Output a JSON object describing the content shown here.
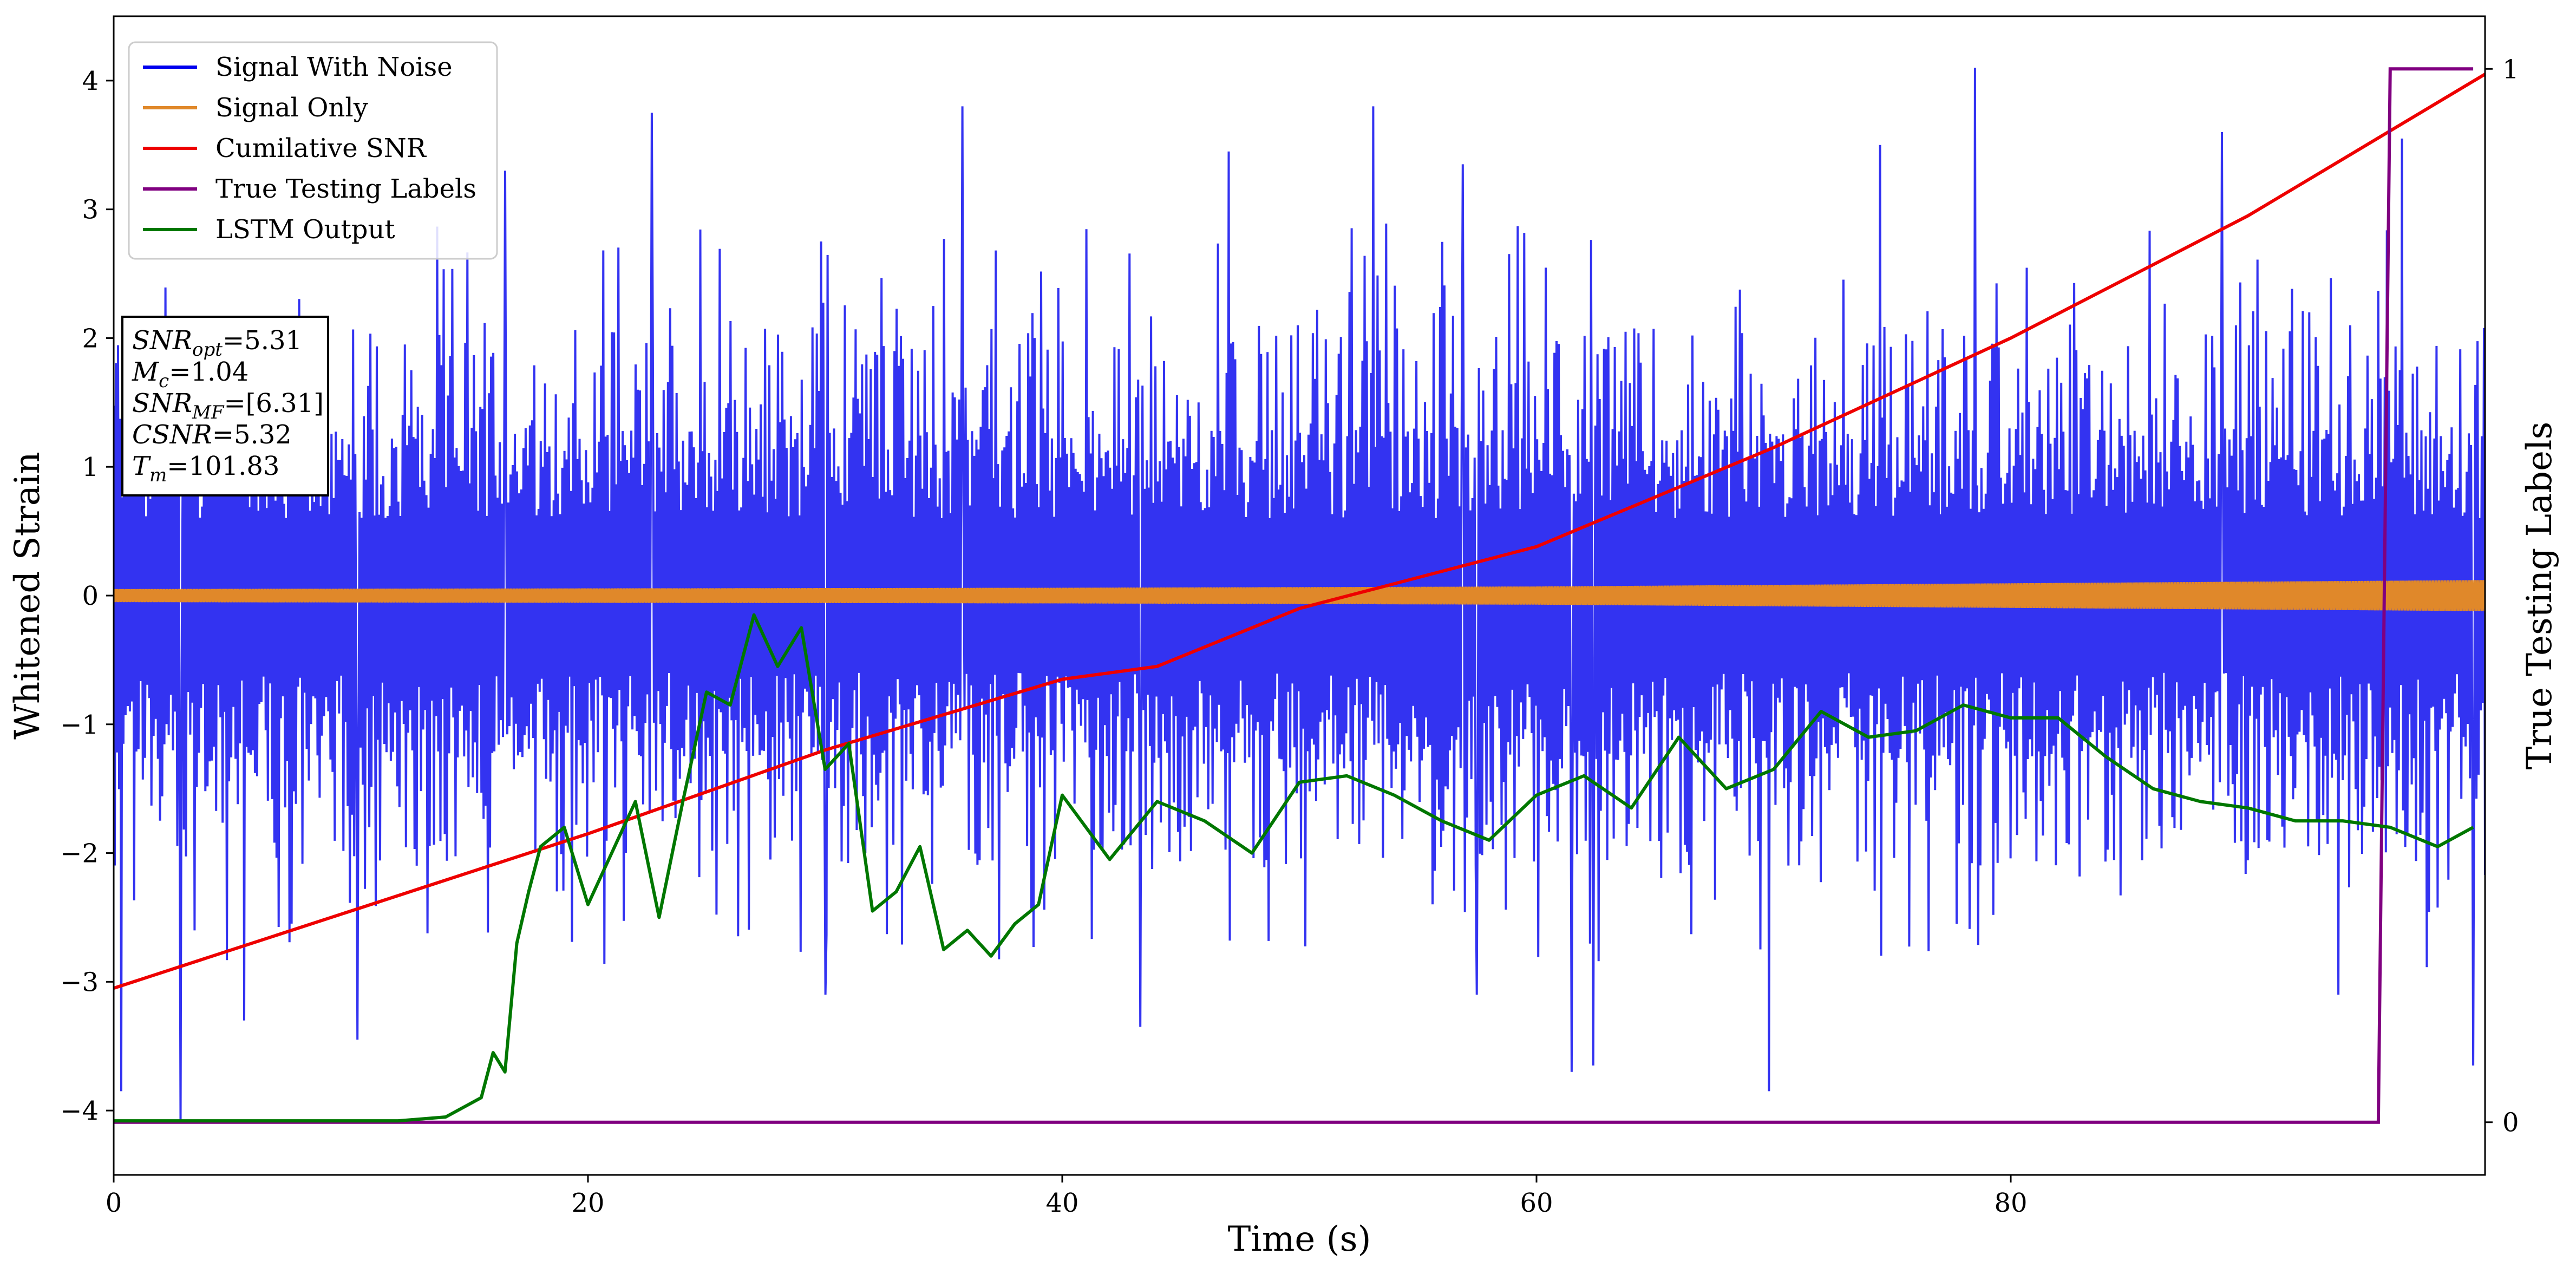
{
  "chart_data": {
    "type": "line",
    "xlabel": "Time (s)",
    "ylabel": "Whitened Strain",
    "y2label": "True Testing Labels",
    "xlim": [
      0,
      100
    ],
    "ylim": [
      -4.5,
      4.5
    ],
    "y2lim": [
      -0.05,
      1.05
    ],
    "xticks": [
      0,
      20,
      40,
      60,
      80
    ],
    "yticks": [
      -4,
      -3,
      -2,
      -1,
      0,
      1,
      2,
      3,
      4
    ],
    "y2ticks": [
      0,
      1
    ],
    "grid": false,
    "legend_position": "top-left",
    "series": [
      {
        "name": "Signal With Noise",
        "axis": "left",
        "color": "#0000ee",
        "noise_band": [
          -1.7,
          2.3
        ],
        "peaks": [
          {
            "x": 0.3,
            "y": -3.85
          },
          {
            "x": 2.8,
            "y": -4.08
          },
          {
            "x": 5.5,
            "y": -3.3
          },
          {
            "x": 10.3,
            "y": -3.45
          },
          {
            "x": 16.5,
            "y": 3.3
          },
          {
            "x": 22.7,
            "y": 3.75
          },
          {
            "x": 30.0,
            "y": -3.1
          },
          {
            "x": 35.8,
            "y": 3.8
          },
          {
            "x": 43.3,
            "y": -3.35
          },
          {
            "x": 47.0,
            "y": 3.45
          },
          {
            "x": 53.1,
            "y": 3.8
          },
          {
            "x": 56.9,
            "y": 3.35
          },
          {
            "x": 57.5,
            "y": -3.1
          },
          {
            "x": 61.5,
            "y": -3.7
          },
          {
            "x": 62.4,
            "y": -3.65
          },
          {
            "x": 69.8,
            "y": -3.85
          },
          {
            "x": 74.5,
            "y": 3.5
          },
          {
            "x": 78.5,
            "y": 4.1
          },
          {
            "x": 88.9,
            "y": 3.6
          },
          {
            "x": 93.8,
            "y": -3.1
          },
          {
            "x": 96.5,
            "y": 3.55
          },
          {
            "x": 99.5,
            "y": -3.65
          }
        ]
      },
      {
        "name": "Signal Only",
        "axis": "left",
        "color": "#e0882a",
        "amplitude": [
          [
            0,
            0.05
          ],
          [
            40,
            0.06
          ],
          [
            60,
            0.07
          ],
          [
            100,
            0.12
          ]
        ]
      },
      {
        "name": "Cumilative SNR",
        "axis": "left",
        "color": "#ee0000",
        "x": [
          0,
          10,
          20,
          30,
          40,
          44,
          50,
          60,
          70,
          80,
          90,
          100
        ],
        "y": [
          -3.05,
          -2.45,
          -1.85,
          -1.2,
          -0.65,
          -0.55,
          -0.1,
          0.38,
          1.15,
          2.0,
          2.95,
          4.05
        ]
      },
      {
        "name": "True Testing Labels",
        "axis": "right",
        "color": "#800080",
        "x": [
          0,
          95.5,
          96.0,
          99.5
        ],
        "y": [
          0,
          0,
          1,
          1
        ]
      },
      {
        "name": "LSTM Output",
        "axis": "left",
        "color": "#007700",
        "x": [
          0,
          12,
          14,
          15.5,
          16,
          16.5,
          17,
          17.5,
          18,
          19,
          20,
          21,
          22,
          23,
          24,
          25,
          26,
          27,
          28,
          29,
          30,
          31,
          32,
          33,
          34,
          35,
          36,
          37,
          38,
          39,
          40,
          42,
          44,
          46,
          48,
          50,
          52,
          54,
          56,
          58,
          60,
          62,
          64,
          66,
          68,
          70,
          72,
          74,
          76,
          78,
          80,
          82,
          84,
          86,
          88,
          90,
          92,
          94,
          96,
          98,
          99.5
        ],
        "y": [
          -4.08,
          -4.08,
          -4.05,
          -3.9,
          -3.55,
          -3.7,
          -2.7,
          -2.3,
          -1.95,
          -1.8,
          -2.4,
          -2.0,
          -1.6,
          -2.5,
          -1.6,
          -0.75,
          -0.85,
          -0.15,
          -0.55,
          -0.25,
          -1.35,
          -1.15,
          -2.45,
          -2.3,
          -1.95,
          -2.75,
          -2.6,
          -2.8,
          -2.55,
          -2.4,
          -1.55,
          -2.05,
          -1.6,
          -1.75,
          -2.0,
          -1.45,
          -1.4,
          -1.55,
          -1.75,
          -1.9,
          -1.55,
          -1.4,
          -1.65,
          -1.1,
          -1.5,
          -1.35,
          -0.9,
          -1.1,
          -1.05,
          -0.85,
          -0.95,
          -0.95,
          -1.25,
          -1.5,
          -1.6,
          -1.65,
          -1.75,
          -1.75,
          -1.8,
          -1.95,
          -1.8
        ]
      }
    ],
    "annotation": {
      "lines": [
        {
          "base": "SNR",
          "sub": "opt",
          "rest": "=5.31"
        },
        {
          "base": "M",
          "sub": "c",
          "rest": "=1.04"
        },
        {
          "base": "SNR",
          "sub": "MF",
          "rest": "=[6.31]"
        },
        {
          "base": "CSNR",
          "sub": "",
          "rest": "=5.32"
        },
        {
          "base": "T",
          "sub": "m",
          "rest": "=101.83"
        }
      ]
    }
  }
}
